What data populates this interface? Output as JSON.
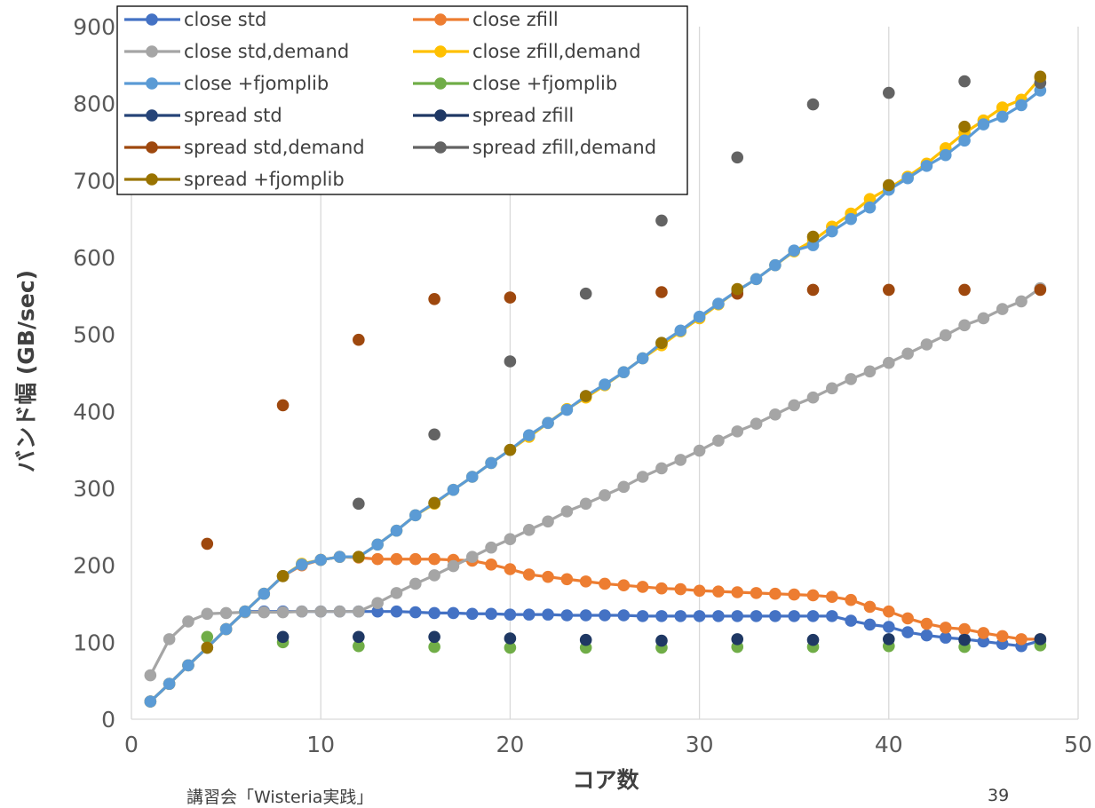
{
  "chart_data": {
    "type": "line",
    "xlabel": "コア数",
    "ylabel": "バンド幅 (GB/sec)",
    "xlim": [
      0,
      50
    ],
    "ylim": [
      0,
      900
    ],
    "xticks": [
      0,
      10,
      20,
      30,
      40,
      50
    ],
    "yticks": [
      0,
      100,
      200,
      300,
      400,
      500,
      600,
      700,
      800,
      900
    ],
    "grid": "vertical",
    "legend_position": "top-left",
    "series": [
      {
        "name": "close std",
        "color": "#4472C4",
        "style": "line",
        "x": [
          1,
          2,
          3,
          4,
          5,
          6,
          7,
          8,
          9,
          10,
          11,
          12,
          13,
          14,
          15,
          16,
          17,
          18,
          19,
          20,
          21,
          22,
          23,
          24,
          25,
          26,
          27,
          28,
          29,
          30,
          31,
          32,
          33,
          34,
          35,
          36,
          37,
          38,
          39,
          40,
          41,
          42,
          43,
          44,
          45,
          46,
          47,
          48
        ],
        "y": [
          23,
          46,
          70,
          93,
          117,
          140,
          140,
          140,
          140,
          140,
          140,
          140,
          140,
          140,
          139,
          138,
          138,
          137,
          137,
          136,
          136,
          136,
          135,
          135,
          135,
          135,
          134,
          134,
          134,
          134,
          134,
          134,
          134,
          134,
          134,
          134,
          134,
          128,
          123,
          120,
          113,
          109,
          106,
          104,
          101,
          98,
          95,
          102
        ]
      },
      {
        "name": "close zfill",
        "color": "#ED7D31",
        "style": "line",
        "x": [
          1,
          2,
          3,
          4,
          5,
          6,
          7,
          8,
          9,
          10,
          11,
          12,
          13,
          14,
          15,
          16,
          17,
          18,
          19,
          20,
          21,
          22,
          23,
          24,
          25,
          26,
          27,
          28,
          29,
          30,
          31,
          32,
          33,
          34,
          35,
          36,
          37,
          38,
          39,
          40,
          41,
          42,
          43,
          44,
          45,
          46,
          47,
          48
        ],
        "y": [
          23,
          46,
          70,
          93,
          117,
          140,
          163,
          186,
          200,
          207,
          211,
          210,
          208,
          208,
          208,
          208,
          207,
          206,
          201,
          195,
          188,
          185,
          182,
          179,
          176,
          174,
          172,
          170,
          169,
          167,
          166,
          165,
          164,
          163,
          162,
          161,
          159,
          155,
          146,
          140,
          131,
          124,
          119,
          117,
          112,
          108,
          104,
          104
        ]
      },
      {
        "name": "close std,demand",
        "color": "#A5A5A5",
        "style": "line",
        "x": [
          1,
          2,
          3,
          4,
          5,
          6,
          7,
          8,
          9,
          10,
          11,
          12,
          13,
          14,
          15,
          16,
          17,
          18,
          19,
          20,
          21,
          22,
          23,
          24,
          25,
          26,
          27,
          28,
          29,
          30,
          31,
          32,
          33,
          34,
          35,
          36,
          37,
          38,
          39,
          40,
          41,
          42,
          43,
          44,
          45,
          46,
          47,
          48
        ],
        "y": [
          57,
          104,
          127,
          137,
          138,
          139,
          139,
          139,
          140,
          140,
          140,
          140,
          151,
          164,
          176,
          187,
          199,
          211,
          223,
          234,
          246,
          257,
          270,
          280,
          291,
          302,
          315,
          326,
          337,
          349,
          362,
          374,
          384,
          396,
          408,
          418,
          430,
          442,
          452,
          463,
          475,
          487,
          499,
          512,
          521,
          533,
          543,
          560
        ]
      },
      {
        "name": "close zfill,demand",
        "color": "#FFC000",
        "style": "line",
        "x": [
          1,
          2,
          3,
          4,
          5,
          6,
          7,
          8,
          9,
          10,
          11,
          12,
          13,
          14,
          15,
          16,
          17,
          18,
          19,
          20,
          21,
          22,
          23,
          24,
          25,
          26,
          27,
          28,
          29,
          30,
          31,
          32,
          33,
          34,
          35,
          36,
          37,
          38,
          39,
          40,
          41,
          42,
          43,
          44,
          45,
          46,
          47,
          48
        ],
        "y": [
          23,
          46,
          70,
          93,
          117,
          140,
          163,
          186,
          202,
          207,
          211,
          211,
          227,
          245,
          265,
          280,
          298,
          315,
          333,
          350,
          367,
          385,
          403,
          418,
          434,
          451,
          469,
          486,
          504,
          521,
          539,
          557,
          572,
          590,
          608,
          622,
          640,
          657,
          676,
          690,
          705,
          722,
          742,
          762,
          778,
          795,
          805,
          833
        ]
      },
      {
        "name": "close +fjomplib",
        "color": "#5B9BD5",
        "style": "line",
        "x": [
          1,
          2,
          3,
          4,
          5,
          6,
          7,
          8,
          9,
          10,
          11,
          12,
          13,
          14,
          15,
          16,
          17,
          18,
          19,
          20,
          21,
          22,
          23,
          24,
          25,
          26,
          27,
          28,
          29,
          30,
          31,
          32,
          33,
          34,
          35,
          36,
          37,
          38,
          39,
          40,
          41,
          42,
          43,
          44,
          45,
          46,
          47,
          48
        ],
        "y": [
          23,
          46,
          70,
          93,
          117,
          140,
          163,
          186,
          201,
          207,
          211,
          211,
          227,
          245,
          265,
          281,
          298,
          315,
          333,
          350,
          369,
          385,
          402,
          420,
          435,
          451,
          469,
          489,
          505,
          523,
          540,
          557,
          572,
          590,
          609,
          616,
          634,
          650,
          665,
          688,
          703,
          719,
          733,
          752,
          773,
          783,
          798,
          817
        ]
      },
      {
        "name": "close +fjomplib",
        "color": "#70AD47",
        "style": "marker",
        "x": [
          4,
          8,
          12,
          16,
          20,
          24,
          28,
          32,
          36,
          40,
          44,
          48
        ],
        "y": [
          107,
          100,
          95,
          94,
          93,
          93,
          93,
          94,
          94,
          95,
          94,
          96
        ]
      },
      {
        "name": "spread std",
        "color": "#264478",
        "style": "marker",
        "x": [],
        "y": []
      },
      {
        "name": "spread zfill",
        "color": "#1F3864",
        "style": "marker",
        "x": [
          8,
          12,
          16,
          20,
          24,
          28,
          32,
          36,
          40,
          44,
          48
        ],
        "y": [
          107,
          107,
          107,
          105,
          103,
          102,
          104,
          103,
          104,
          103,
          104
        ]
      },
      {
        "name": "spread std,demand",
        "color": "#9E480E",
        "style": "marker",
        "x": [
          4,
          8,
          12,
          16,
          20,
          28,
          32,
          36,
          40,
          44,
          48
        ],
        "y": [
          228,
          408,
          493,
          546,
          548,
          555,
          553,
          558,
          558,
          558,
          558
        ]
      },
      {
        "name": "spread zfill,demand",
        "color": "#636363",
        "style": "marker",
        "x": [
          12,
          16,
          20,
          24,
          28,
          32,
          36,
          40,
          44,
          48
        ],
        "y": [
          280,
          370,
          465,
          553,
          648,
          730,
          799,
          814,
          829,
          827
        ]
      },
      {
        "name": "spread +fjomplib",
        "color": "#997300",
        "style": "marker",
        "x": [
          4,
          8,
          12,
          16,
          20,
          24,
          28,
          32,
          36,
          40,
          44,
          48
        ],
        "y": [
          93,
          186,
          211,
          281,
          350,
          420,
          489,
          559,
          627,
          694,
          770,
          835
        ]
      }
    ]
  },
  "footer": {
    "left": "講習会「Wisteria実践」",
    "page_number": "39"
  }
}
